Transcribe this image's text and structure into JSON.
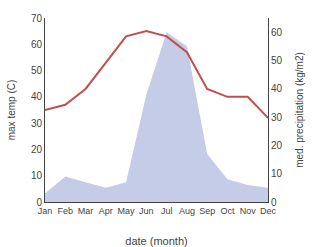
{
  "chart_data": {
    "type": "line",
    "categories": [
      "Jan",
      "Feb",
      "Mar",
      "Apr",
      "May",
      "Jun",
      "Jul",
      "Aug",
      "Sep",
      "Oct",
      "Nov",
      "Dec"
    ],
    "series": [
      {
        "type": "area",
        "axis": "y2",
        "color": "#c5cce8",
        "values": [
          3,
          9,
          7,
          5,
          7,
          38,
          60,
          55,
          17,
          8,
          6,
          5
        ]
      },
      {
        "type": "line",
        "color": "#c0504d",
        "values": [
          35,
          37,
          43,
          53,
          63,
          65,
          63,
          57,
          43,
          40,
          40,
          32
        ]
      }
    ],
    "xlabel": "date (month)",
    "ylabel": "max temp (C)",
    "y2label": "med. precipitation (kg/m2)",
    "ylim": [
      0,
      70
    ],
    "yticks": [
      0,
      10,
      20,
      30,
      40,
      50,
      60,
      70
    ],
    "y2lim": [
      0,
      65
    ],
    "y2ticks": [
      0,
      10,
      20,
      30,
      40,
      50,
      60
    ],
    "grid": false
  }
}
